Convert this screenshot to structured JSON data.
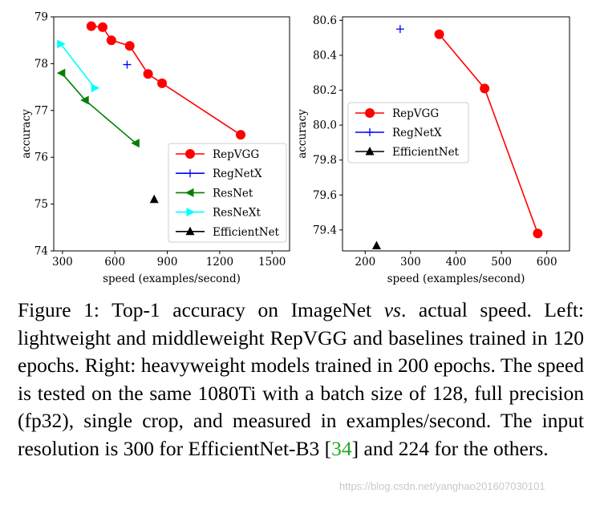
{
  "chart_data": [
    {
      "type": "line",
      "xlabel": "speed (examples/second)",
      "ylabel": "accuracy",
      "xlim": [
        250,
        1600
      ],
      "ylim": [
        74,
        79
      ],
      "xticks": [
        300,
        600,
        900,
        1200,
        1500
      ],
      "yticks": [
        74,
        75,
        76,
        77,
        78,
        79
      ],
      "grid": false,
      "legend_position": "bottom-right",
      "series": [
        {
          "name": "RepVGG",
          "color": "#ff0000",
          "marker": "circle",
          "line": true,
          "x": [
            465,
            530,
            580,
            685,
            790,
            870,
            1320
          ],
          "y": [
            78.8,
            78.78,
            78.5,
            78.38,
            77.78,
            77.58,
            76.48
          ]
        },
        {
          "name": "RegNetX",
          "color": "#0000ff",
          "marker": "plus",
          "line": false,
          "x": [
            670
          ],
          "y": [
            77.98
          ]
        },
        {
          "name": "ResNet",
          "color": "#008000",
          "marker": "triangle-left",
          "line": true,
          "x": [
            295,
            430,
            720
          ],
          "y": [
            77.8,
            77.22,
            76.3
          ]
        },
        {
          "name": "ResNeXt",
          "color": "#00ffff",
          "marker": "triangle-right",
          "line": true,
          "x": [
            290,
            485
          ],
          "y": [
            78.42,
            77.48
          ]
        },
        {
          "name": "EfficientNet",
          "color": "#000000",
          "marker": "triangle-up",
          "line": false,
          "x": [
            825
          ],
          "y": [
            75.1
          ]
        }
      ]
    },
    {
      "type": "line",
      "xlabel": "speed (examples/second)",
      "ylabel": "accuracy",
      "xlim": [
        150,
        650
      ],
      "ylim": [
        79.28,
        80.62
      ],
      "xticks": [
        200,
        300,
        400,
        500,
        600
      ],
      "yticks": [
        79.4,
        79.6,
        79.8,
        80.0,
        80.2,
        80.4,
        80.6
      ],
      "grid": false,
      "legend_position": "center-left",
      "series": [
        {
          "name": "RepVGG",
          "color": "#ff0000",
          "marker": "circle",
          "line": true,
          "x": [
            363,
            463,
            580
          ],
          "y": [
            80.52,
            80.21,
            79.38
          ]
        },
        {
          "name": "RegNetX",
          "color": "#0000ff",
          "marker": "plus",
          "line": false,
          "x": [
            277
          ],
          "y": [
            80.55
          ]
        },
        {
          "name": "EfficientNet",
          "color": "#000000",
          "marker": "triangle-up",
          "line": false,
          "x": [
            225
          ],
          "y": [
            79.31
          ]
        }
      ]
    }
  ],
  "caption": {
    "prefix": "Figure 1:  Top-1 accuracy on ImageNet ",
    "vs": "vs",
    "body": ". actual speed. Left: lightweight and middleweight RepVGG and baselines trained in 120 epochs.  Right:  heavyweight models trained in 200 epochs. The speed is tested on the same 1080Ti with a batch size of 128, full precision (fp32), single crop, and measured in examples/second.  The input resolution is 300 for EfficientNet-B3 [",
    "citation": "34",
    "suffix": "] and 224 for the others."
  },
  "watermark": "https://blog.csdn.net/yanghao201607030101"
}
